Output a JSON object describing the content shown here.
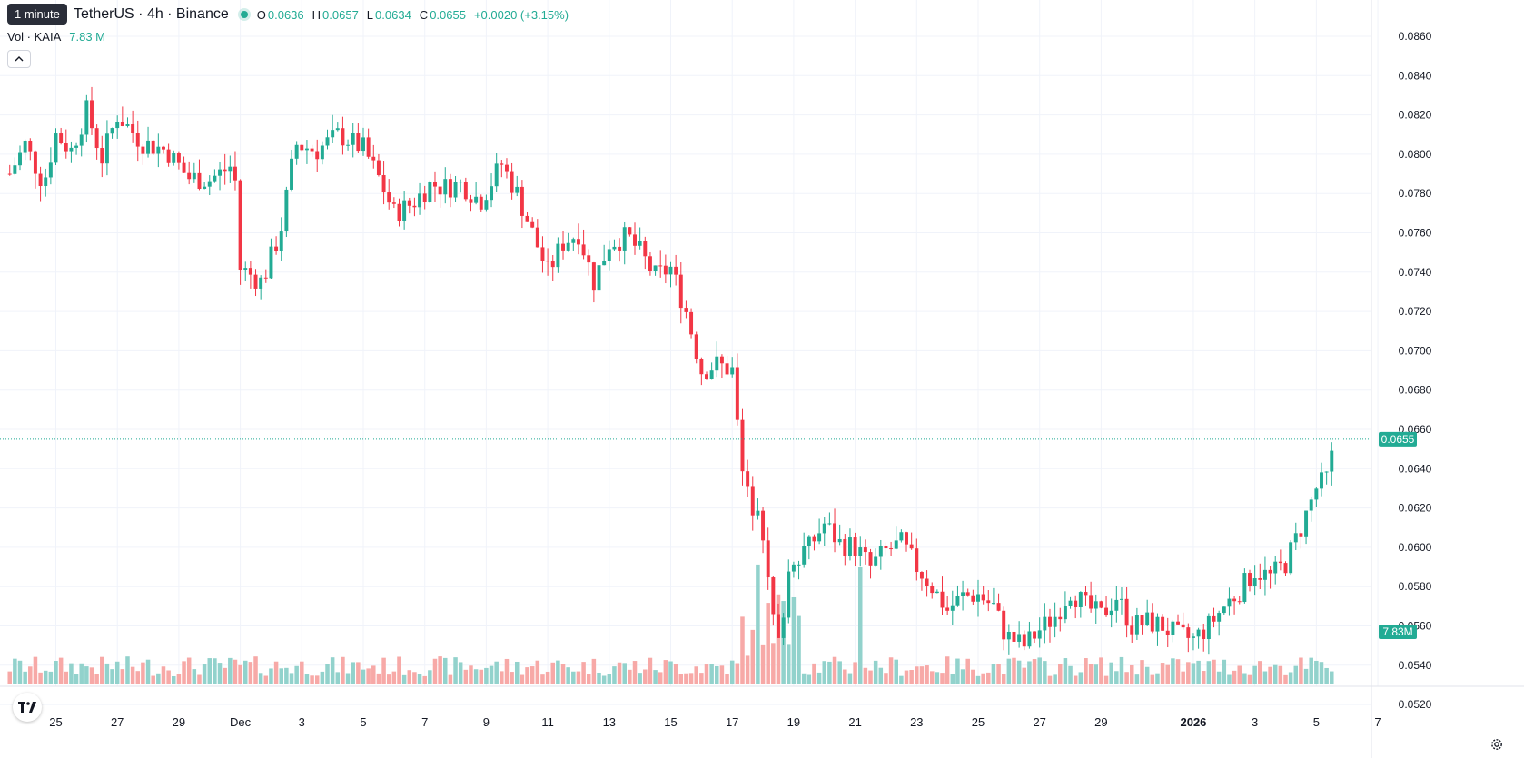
{
  "tooltip": "1 minute",
  "symbol": {
    "title": "TetherUS · 4h · Binance"
  },
  "ohlc": {
    "o_label": "O",
    "o": "0.0636",
    "h_label": "H",
    "h": "0.0657",
    "l_label": "L",
    "l": "0.0634",
    "c_label": "C",
    "c": "0.0655",
    "change": "+0.0020 (+3.15%)"
  },
  "volume": {
    "title": "Vol · KAIA",
    "value": "7.83 M"
  },
  "collapse_icon": "chevron-up-icon",
  "settings_icon": "gear-icon",
  "logo_text": "TV",
  "colors": {
    "up": "#22ab94",
    "down": "#f23645",
    "vol_up": "#92d2cc",
    "vol_down": "#f7a9a7",
    "grid": "#f0f3fa"
  },
  "chart_data": {
    "type": "candlestick",
    "y_ticks": [
      "0.0860",
      "0.0840",
      "0.0820",
      "0.0800",
      "0.0780",
      "0.0760",
      "0.0740",
      "0.0720",
      "0.0700",
      "0.0680",
      "0.0660",
      "0.0640",
      "0.0620",
      "0.0600",
      "0.0580",
      "0.0560",
      "0.0540",
      "0.0520"
    ],
    "ylim": [
      0.0512,
      0.0866
    ],
    "x_ticks": [
      {
        "label": "25",
        "day": 25
      },
      {
        "label": "27",
        "day": 27
      },
      {
        "label": "29",
        "day": 29
      },
      {
        "label": "Dec",
        "day": 31
      },
      {
        "label": "3",
        "day": 33
      },
      {
        "label": "5",
        "day": 35
      },
      {
        "label": "7",
        "day": 37
      },
      {
        "label": "9",
        "day": 39
      },
      {
        "label": "11",
        "day": 41
      },
      {
        "label": "13",
        "day": 43
      },
      {
        "label": "15",
        "day": 45
      },
      {
        "label": "17",
        "day": 47
      },
      {
        "label": "19",
        "day": 49
      },
      {
        "label": "21",
        "day": 51
      },
      {
        "label": "23",
        "day": 53
      },
      {
        "label": "25",
        "day": 55
      },
      {
        "label": "27",
        "day": 57
      },
      {
        "label": "29",
        "day": 59
      },
      {
        "label": "2026",
        "day": 62,
        "bold": true
      },
      {
        "label": "3",
        "day": 64
      },
      {
        "label": "5",
        "day": 66
      },
      {
        "label": "7",
        "day": 68
      }
    ],
    "last_price": "0.0655",
    "last_volume": "7.83M",
    "closes_anchor": [
      [
        23.5,
        0.079
      ],
      [
        24.0,
        0.0805
      ],
      [
        24.6,
        0.0785
      ],
      [
        25.0,
        0.081
      ],
      [
        25.5,
        0.0802
      ],
      [
        26.0,
        0.0822
      ],
      [
        26.5,
        0.0798
      ],
      [
        27.0,
        0.082
      ],
      [
        27.8,
        0.0806
      ],
      [
        28.6,
        0.0802
      ],
      [
        29.3,
        0.0788
      ],
      [
        30.0,
        0.0787
      ],
      [
        30.8,
        0.0795
      ],
      [
        31.0,
        0.0742
      ],
      [
        31.7,
        0.0735
      ],
      [
        32.3,
        0.076
      ],
      [
        32.8,
        0.0805
      ],
      [
        33.5,
        0.0802
      ],
      [
        34.2,
        0.081
      ],
      [
        35.0,
        0.0803
      ],
      [
        35.5,
        0.0788
      ],
      [
        36.0,
        0.077
      ],
      [
        36.6,
        0.0775
      ],
      [
        37.2,
        0.0785
      ],
      [
        37.6,
        0.0783
      ],
      [
        38.2,
        0.0785
      ],
      [
        38.8,
        0.0776
      ],
      [
        39.5,
        0.0795
      ],
      [
        40.0,
        0.078
      ],
      [
        40.5,
        0.076
      ],
      [
        41.0,
        0.074
      ],
      [
        41.5,
        0.0755
      ],
      [
        42.0,
        0.076
      ],
      [
        42.5,
        0.0735
      ],
      [
        43.0,
        0.0755
      ],
      [
        43.6,
        0.0758
      ],
      [
        44.0,
        0.075
      ],
      [
        44.5,
        0.0738
      ],
      [
        45.0,
        0.0742
      ],
      [
        45.5,
        0.072
      ],
      [
        46.0,
        0.069
      ],
      [
        46.5,
        0.0693
      ],
      [
        47.0,
        0.069
      ],
      [
        47.3,
        0.064
      ],
      [
        47.6,
        0.062
      ],
      [
        47.9,
        0.0625
      ],
      [
        48.2,
        0.0575
      ],
      [
        48.5,
        0.055
      ],
      [
        48.9,
        0.0595
      ],
      [
        49.5,
        0.06
      ],
      [
        50.0,
        0.0612
      ],
      [
        50.5,
        0.0602
      ],
      [
        51.0,
        0.06
      ],
      [
        51.5,
        0.059
      ],
      [
        52.0,
        0.0598
      ],
      [
        52.5,
        0.0602
      ],
      [
        53.0,
        0.059
      ],
      [
        53.5,
        0.058
      ],
      [
        54.0,
        0.0568
      ],
      [
        54.5,
        0.0575
      ],
      [
        55.0,
        0.0576
      ],
      [
        55.5,
        0.057
      ],
      [
        55.9,
        0.0555
      ],
      [
        56.5,
        0.055
      ],
      [
        57.0,
        0.0558
      ],
      [
        57.5,
        0.0565
      ],
      [
        58.0,
        0.0578
      ],
      [
        58.5,
        0.057
      ],
      [
        59.0,
        0.0565
      ],
      [
        59.5,
        0.0575
      ],
      [
        60.0,
        0.056
      ],
      [
        60.5,
        0.0562
      ],
      [
        61.0,
        0.056
      ],
      [
        61.5,
        0.0555
      ],
      [
        62.0,
        0.0553
      ],
      [
        62.5,
        0.056
      ],
      [
        63.0,
        0.057
      ],
      [
        63.5,
        0.0578
      ],
      [
        64.0,
        0.0588
      ],
      [
        64.5,
        0.0585
      ],
      [
        65.0,
        0.0592
      ],
      [
        65.5,
        0.061
      ],
      [
        66.0,
        0.063
      ],
      [
        66.4,
        0.0636
      ],
      [
        66.6,
        0.0655
      ]
    ]
  }
}
